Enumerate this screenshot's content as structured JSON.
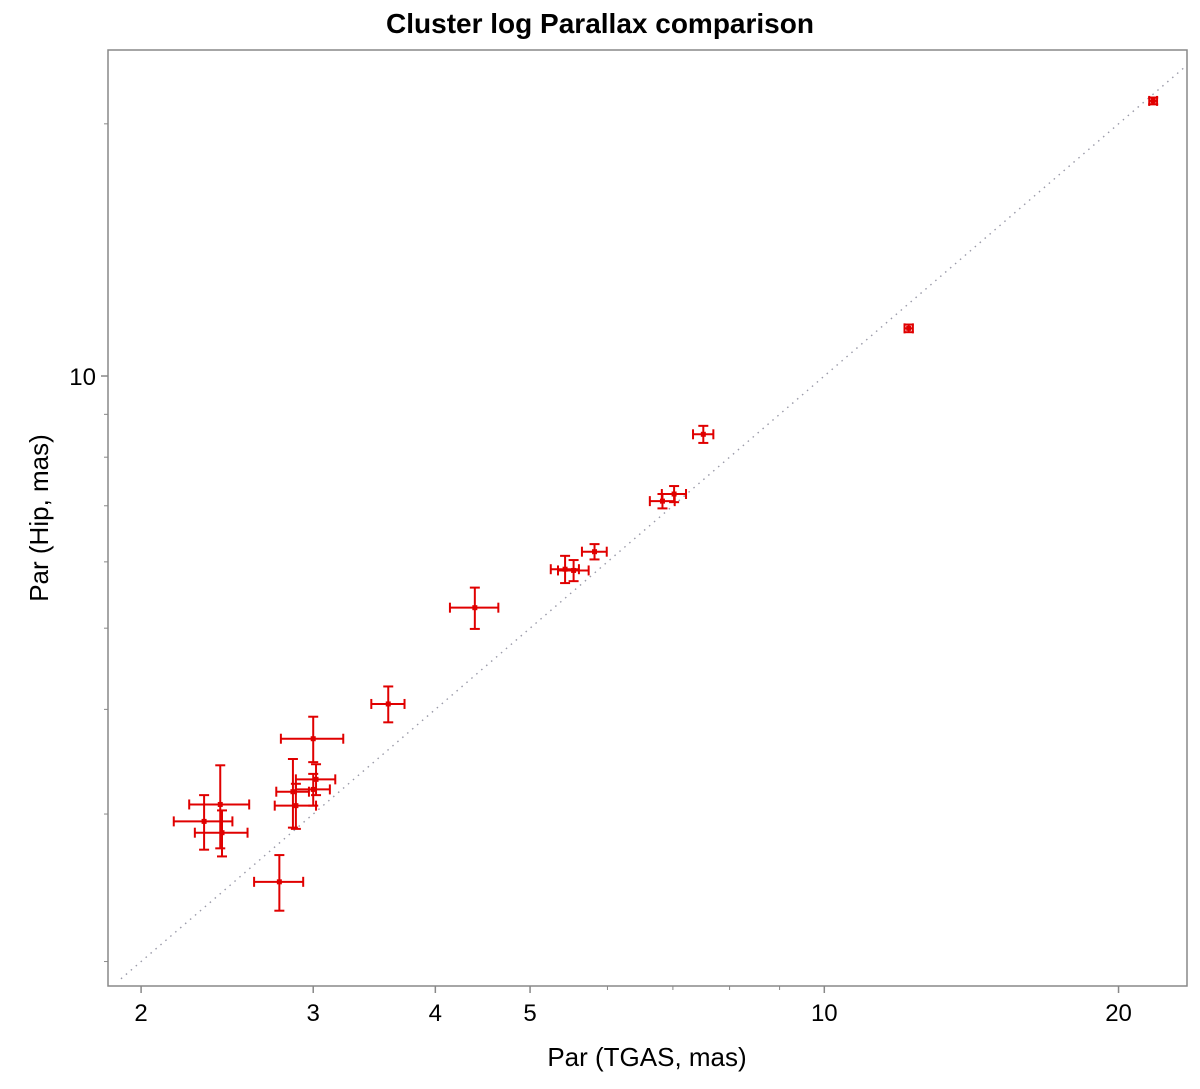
{
  "chart_data": {
    "type": "scatter",
    "title": "Cluster log Parallax comparison",
    "xlabel": "Par (TGAS, mas)",
    "ylabel": "Par (Hip, mas)",
    "x_scale": "log",
    "y_scale": "log",
    "xlim": [
      1.85,
      23.5
    ],
    "ylim": [
      1.87,
      24.5
    ],
    "x_ticks": [
      {
        "value": 2,
        "label": "2"
      },
      {
        "value": 3,
        "label": "3"
      },
      {
        "value": 4,
        "label": "4"
      },
      {
        "value": 5,
        "label": "5"
      },
      {
        "value": 10,
        "label": "10"
      },
      {
        "value": 20,
        "label": "20"
      }
    ],
    "x_minor_ticks": [
      6,
      7,
      8,
      9
    ],
    "y_ticks": [
      {
        "value": 10,
        "label": "10"
      }
    ],
    "y_minor_ticks": [
      2,
      3,
      4,
      5,
      6,
      7,
      8,
      9,
      20
    ],
    "reference_line": {
      "type": "y=x",
      "style": "dotted"
    },
    "grid": false,
    "colors": {
      "points": "#e00000",
      "reference_line": "#9a9aa8"
    },
    "series": [
      {
        "points": [
          {
            "x": 21.7,
            "y": 21.3,
            "xerr": 0.2,
            "yerr": 0.2
          },
          {
            "x": 12.2,
            "y": 11.4,
            "xerr": 0.12,
            "yerr": 0.12
          },
          {
            "x": 7.52,
            "y": 8.52,
            "xerr": 0.18,
            "yerr": 0.2
          },
          {
            "x": 7.02,
            "y": 7.23,
            "xerr": 0.2,
            "yerr": 0.16
          },
          {
            "x": 6.83,
            "y": 7.09,
            "xerr": 0.2,
            "yerr": 0.14
          },
          {
            "x": 5.82,
            "y": 6.17,
            "xerr": 0.17,
            "yerr": 0.13
          },
          {
            "x": 5.54,
            "y": 5.86,
            "xerr": 0.2,
            "yerr": 0.17
          },
          {
            "x": 5.43,
            "y": 5.88,
            "xerr": 0.18,
            "yerr": 0.22
          },
          {
            "x": 4.39,
            "y": 5.29,
            "xerr": 0.25,
            "yerr": 0.3
          },
          {
            "x": 3.58,
            "y": 4.06,
            "xerr": 0.14,
            "yerr": 0.2
          },
          {
            "x": 3.0,
            "y": 3.69,
            "xerr": 0.22,
            "yerr": 0.23
          },
          {
            "x": 3.02,
            "y": 3.3,
            "xerr": 0.14,
            "yerr": 0.14
          },
          {
            "x": 3.0,
            "y": 3.21,
            "xerr": 0.12,
            "yerr": 0.14
          },
          {
            "x": 2.86,
            "y": 3.19,
            "xerr": 0.11,
            "yerr": 0.3
          },
          {
            "x": 2.88,
            "y": 3.07,
            "xerr": 0.14,
            "yerr": 0.19
          },
          {
            "x": 2.41,
            "y": 3.08,
            "xerr": 0.17,
            "yerr": 0.35
          },
          {
            "x": 2.32,
            "y": 2.94,
            "xerr": 0.16,
            "yerr": 0.22
          },
          {
            "x": 2.42,
            "y": 2.85,
            "xerr": 0.15,
            "yerr": 0.18
          },
          {
            "x": 2.77,
            "y": 2.49,
            "xerr": 0.16,
            "yerr": 0.19
          }
        ]
      }
    ]
  }
}
